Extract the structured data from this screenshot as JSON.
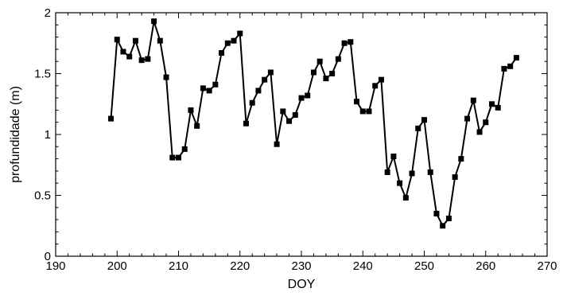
{
  "chart_data": {
    "type": "line",
    "title": "",
    "xlabel": "DOY",
    "ylabel": "profundidade (m)",
    "xlim": [
      190,
      270
    ],
    "ylim": [
      0,
      2
    ],
    "x_ticks": [
      190,
      200,
      210,
      220,
      230,
      240,
      250,
      260,
      270
    ],
    "x_tick_labels": [
      "190",
      "200",
      "210",
      "220",
      "230",
      "240",
      "250",
      "260",
      "270"
    ],
    "y_ticks": [
      0,
      0.5,
      1,
      1.5,
      2
    ],
    "y_tick_labels": [
      "0",
      "0.5",
      "1",
      "1.5",
      "2"
    ],
    "grid": false,
    "legend": false,
    "series": [
      {
        "color": "#000000",
        "marker": "filled-square",
        "x": [
          199,
          200,
          201,
          202,
          203,
          204,
          205,
          206,
          207,
          208,
          209,
          210,
          211,
          212,
          213,
          214,
          215,
          216,
          217,
          218,
          219,
          220,
          221,
          222,
          223,
          224,
          225,
          226,
          227,
          228,
          229,
          230,
          231,
          232,
          233,
          234,
          235,
          236,
          237,
          238,
          239,
          240,
          241,
          242,
          243,
          244,
          245,
          246,
          247,
          248,
          249,
          250,
          251,
          252,
          253,
          254,
          255,
          256,
          257,
          258,
          259,
          260,
          261,
          262,
          263,
          264,
          265
        ],
        "y": [
          1.13,
          1.78,
          1.68,
          1.64,
          1.77,
          1.61,
          1.62,
          1.93,
          1.77,
          1.47,
          0.81,
          0.81,
          0.88,
          1.2,
          1.07,
          1.38,
          1.36,
          1.41,
          1.67,
          1.75,
          1.77,
          1.83,
          1.09,
          1.26,
          1.36,
          1.45,
          1.51,
          0.92,
          1.19,
          1.11,
          1.16,
          1.3,
          1.32,
          1.51,
          1.6,
          1.46,
          1.5,
          1.62,
          1.75,
          1.76,
          1.27,
          1.19,
          1.19,
          1.4,
          1.45,
          0.69,
          0.82,
          0.6,
          0.48,
          0.68,
          1.05,
          1.12,
          0.69,
          0.35,
          0.25,
          0.31,
          0.65,
          0.8,
          1.13,
          1.28,
          1.02,
          1.1,
          1.25,
          1.22,
          1.54,
          1.56,
          1.63
        ]
      }
    ]
  }
}
